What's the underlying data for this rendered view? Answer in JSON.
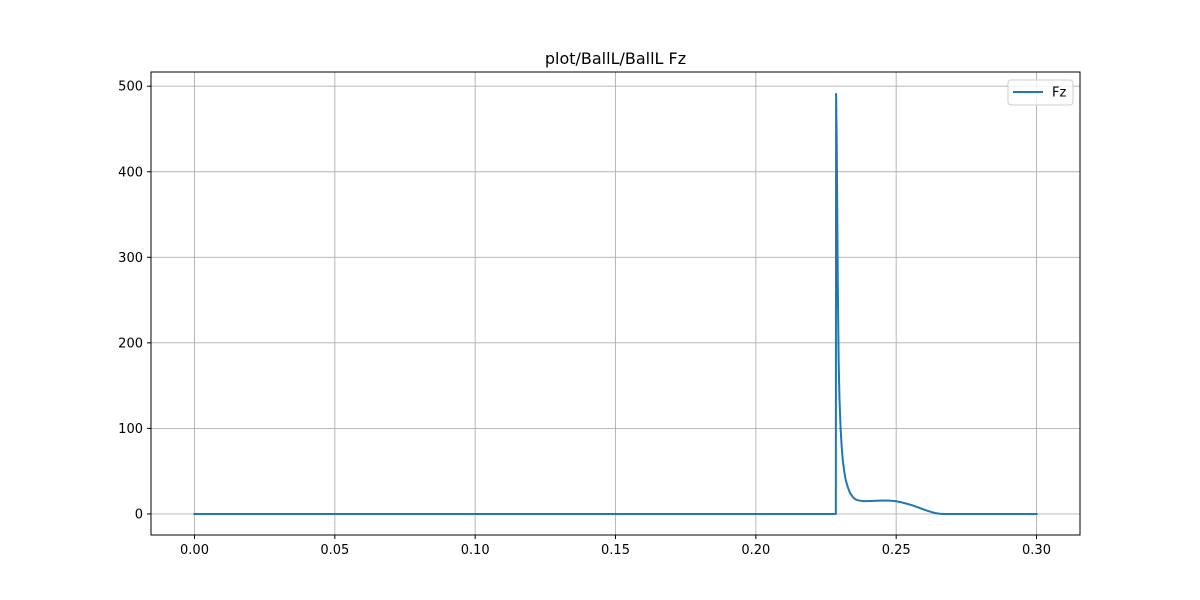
{
  "chart_data": {
    "type": "line",
    "title": "plot/BallL/BallL Fz",
    "xlabel": "",
    "ylabel": "",
    "xlim": [
      -0.0155,
      0.3155
    ],
    "ylim": [
      -24.6,
      516.6
    ],
    "xticks": [
      0.0,
      0.05,
      0.1,
      0.15,
      0.2,
      0.25,
      0.3
    ],
    "xtick_labels": [
      "0.00",
      "0.05",
      "0.10",
      "0.15",
      "0.20",
      "0.25",
      "0.30"
    ],
    "yticks": [
      0,
      100,
      200,
      300,
      400,
      500
    ],
    "ytick_labels": [
      "0",
      "100",
      "200",
      "300",
      "400",
      "500"
    ],
    "grid": true,
    "legend_position": "top-right",
    "series": [
      {
        "name": "Fz",
        "color": "#1f77b4",
        "x": [
          0.0,
          0.05,
          0.1,
          0.15,
          0.2,
          0.2285,
          0.2286,
          0.2288,
          0.229,
          0.2292,
          0.2295,
          0.2298,
          0.2302,
          0.2306,
          0.231,
          0.2315,
          0.232,
          0.2328,
          0.2335,
          0.2345,
          0.2355,
          0.237,
          0.2385,
          0.24,
          0.242,
          0.244,
          0.246,
          0.248,
          0.25,
          0.252,
          0.254,
          0.256,
          0.258,
          0.26,
          0.262,
          0.264,
          0.2655,
          0.267,
          0.27,
          0.28,
          0.29,
          0.3
        ],
        "y": [
          0,
          0,
          0,
          0,
          0,
          0,
          491,
          440,
          360,
          270,
          180,
          135,
          100,
          78,
          62,
          50,
          40,
          31,
          25,
          20,
          17,
          15.5,
          15,
          15,
          15.3,
          15.6,
          15.8,
          15.5,
          14.8,
          13.5,
          11.8,
          9.8,
          7.5,
          5.0,
          2.8,
          1.0,
          0.2,
          0,
          0,
          0,
          0,
          0
        ]
      }
    ]
  }
}
